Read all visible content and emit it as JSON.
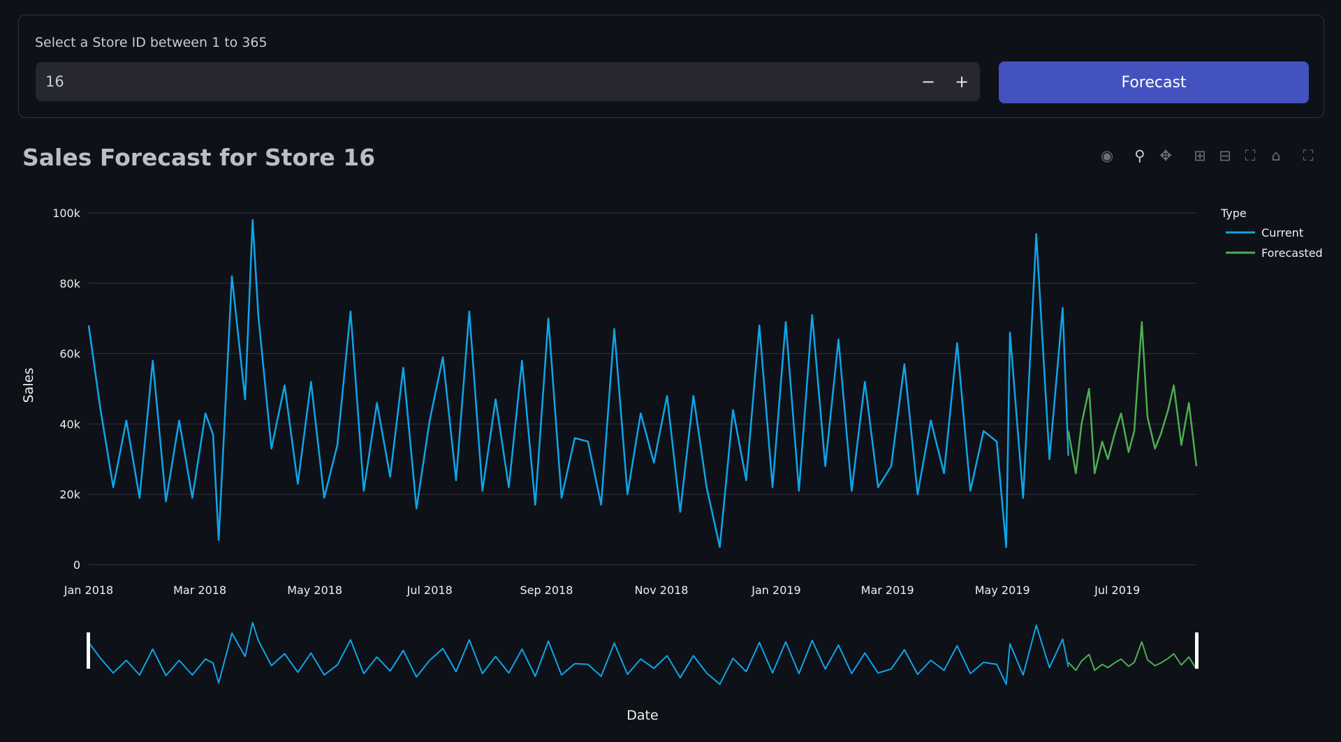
{
  "form": {
    "label": "Select a Store ID between 1 to 365",
    "store_value": "16",
    "minus_label": "−",
    "plus_label": "+",
    "button_label": "Forecast"
  },
  "modebar": {
    "icons": [
      "camera-icon",
      "zoom-icon",
      "pan-icon",
      "zoom-in-icon",
      "zoom-out-icon",
      "autoscale-icon",
      "reset-axes-icon",
      "fullscreen-icon"
    ]
  },
  "colors": {
    "current": "#0ea5e9",
    "forecasted": "#4caf50",
    "grid": "#31333f"
  },
  "chart_data": {
    "type": "line",
    "title": "Sales Forecast for Store 16",
    "xlabel": "Date",
    "ylabel": "Sales",
    "ylim": [
      0,
      100000
    ],
    "yticks": [
      0,
      20000,
      40000,
      60000,
      80000,
      100000
    ],
    "ytick_labels": [
      "0",
      "20k",
      "40k",
      "60k",
      "80k",
      "100k"
    ],
    "xlim": [
      "2018-01-01",
      "2019-08-12"
    ],
    "xticks": [
      "2018-01-01",
      "2018-03-01",
      "2018-05-01",
      "2018-07-01",
      "2018-09-01",
      "2018-11-01",
      "2019-01-01",
      "2019-03-01",
      "2019-05-01",
      "2019-07-01"
    ],
    "xtick_labels": [
      "Jan 2018",
      "Mar 2018",
      "May 2018",
      "Jul 2018",
      "Sep 2018",
      "Nov 2018",
      "Jan 2019",
      "Mar 2019",
      "May 2019",
      "Jul 2019"
    ],
    "grid": true,
    "legend": {
      "title": "Type",
      "position": "top-right"
    },
    "range_slider": true,
    "series": [
      {
        "name": "Current",
        "x": [
          "2018-01-01",
          "2018-01-07",
          "2018-01-14",
          "2018-01-21",
          "2018-01-28",
          "2018-02-04",
          "2018-02-11",
          "2018-02-18",
          "2018-02-25",
          "2018-03-04",
          "2018-03-08",
          "2018-03-11",
          "2018-03-18",
          "2018-03-25",
          "2018-03-29",
          "2018-04-01",
          "2018-04-08",
          "2018-04-15",
          "2018-04-22",
          "2018-04-29",
          "2018-05-06",
          "2018-05-13",
          "2018-05-20",
          "2018-05-27",
          "2018-06-03",
          "2018-06-10",
          "2018-06-17",
          "2018-06-24",
          "2018-07-01",
          "2018-07-08",
          "2018-07-15",
          "2018-07-22",
          "2018-07-29",
          "2018-08-05",
          "2018-08-12",
          "2018-08-19",
          "2018-08-26",
          "2018-09-02",
          "2018-09-09",
          "2018-09-16",
          "2018-09-23",
          "2018-09-30",
          "2018-10-07",
          "2018-10-14",
          "2018-10-21",
          "2018-10-28",
          "2018-11-04",
          "2018-11-11",
          "2018-11-18",
          "2018-11-25",
          "2018-12-02",
          "2018-12-09",
          "2018-12-16",
          "2018-12-23",
          "2018-12-30",
          "2019-01-06",
          "2019-01-13",
          "2019-01-20",
          "2019-01-27",
          "2019-02-03",
          "2019-02-10",
          "2019-02-17",
          "2019-02-24",
          "2019-03-03",
          "2019-03-10",
          "2019-03-17",
          "2019-03-24",
          "2019-03-31",
          "2019-04-07",
          "2019-04-14",
          "2019-04-21",
          "2019-04-28",
          "2019-05-03",
          "2019-05-05",
          "2019-05-12",
          "2019-05-19",
          "2019-05-26",
          "2019-06-02",
          "2019-06-05"
        ],
        "y": [
          68000,
          45000,
          22000,
          41000,
          19000,
          58000,
          18000,
          41000,
          19000,
          43000,
          37000,
          7000,
          82000,
          47000,
          98000,
          71000,
          33000,
          51000,
          23000,
          52000,
          19000,
          34000,
          72000,
          21000,
          46000,
          25000,
          56000,
          16000,
          41000,
          59000,
          24000,
          72000,
          21000,
          47000,
          22000,
          58000,
          17000,
          70000,
          19000,
          36000,
          35000,
          17000,
          67000,
          20000,
          43000,
          29000,
          48000,
          15000,
          48000,
          22000,
          5000,
          44000,
          24000,
          68000,
          22000,
          69000,
          21000,
          71000,
          28000,
          64000,
          21000,
          52000,
          22000,
          28000,
          57000,
          20000,
          41000,
          26000,
          63000,
          21000,
          38000,
          35000,
          5000,
          66000,
          19000,
          94000,
          30000,
          73000,
          31000
        ],
        "color": "#0ea5e9"
      },
      {
        "name": "Forecasted",
        "x": [
          "2019-06-05",
          "2019-06-09",
          "2019-06-12",
          "2019-06-16",
          "2019-06-19",
          "2019-06-23",
          "2019-06-26",
          "2019-06-30",
          "2019-07-03",
          "2019-07-07",
          "2019-07-10",
          "2019-07-14",
          "2019-07-17",
          "2019-07-21",
          "2019-07-24",
          "2019-07-28",
          "2019-07-31",
          "2019-08-04",
          "2019-08-08",
          "2019-08-12"
        ],
        "y": [
          38000,
          26000,
          40000,
          50000,
          26000,
          35000,
          30000,
          38000,
          43000,
          32000,
          38000,
          69000,
          42000,
          33000,
          37000,
          44000,
          51000,
          34000,
          46000,
          28000
        ],
        "color": "#4caf50"
      }
    ]
  }
}
